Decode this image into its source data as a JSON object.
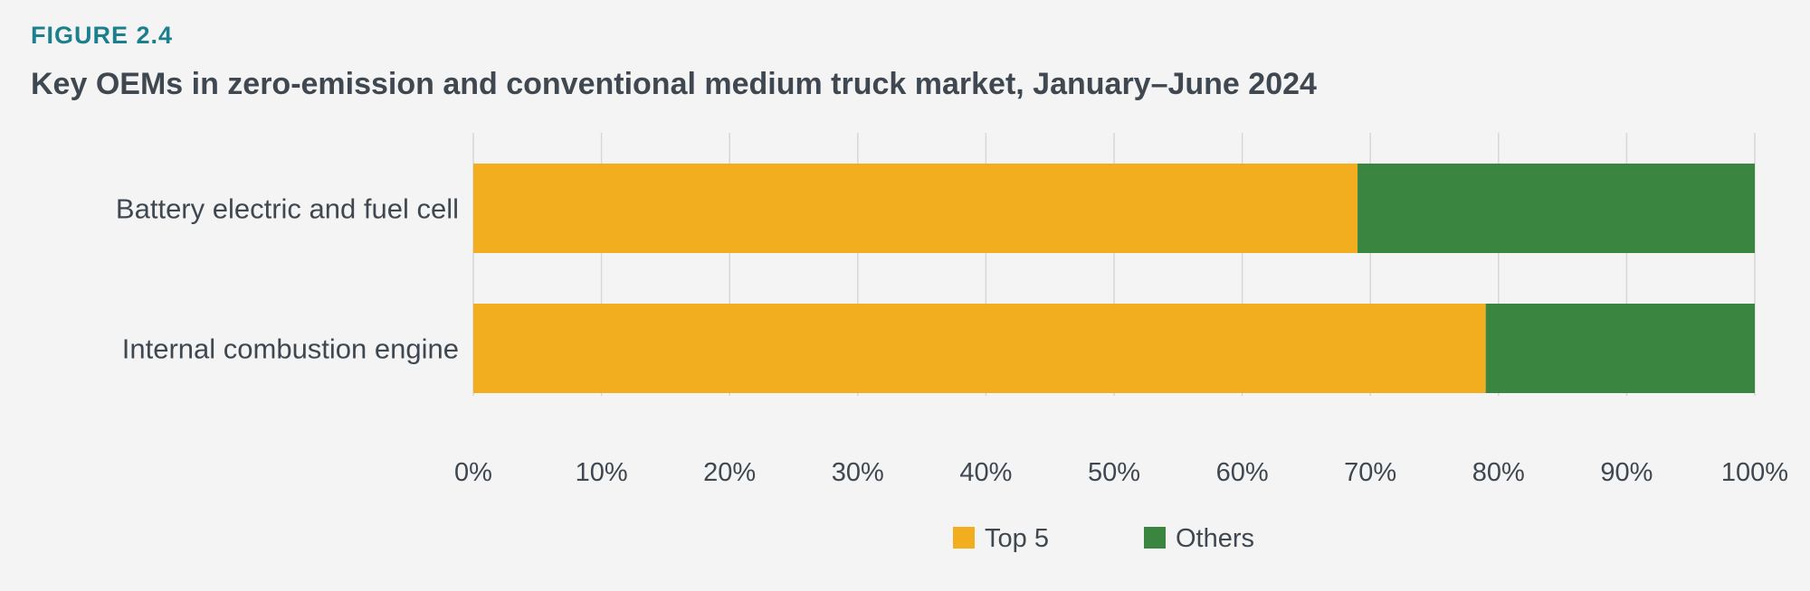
{
  "figure_label": "FIGURE 2.4",
  "title": "Key OEMs in zero-emission and conventional medium truck market, January–June 2024",
  "chart_data": {
    "type": "bar",
    "orientation": "horizontal",
    "stacked": true,
    "title": "Key OEMs in zero-emission and conventional medium truck market, January–June 2024",
    "categories": [
      "Battery electric and fuel cell",
      "Internal combustion engine"
    ],
    "series": [
      {
        "name": "Top 5",
        "color": "#f2ae1f",
        "values": [
          69,
          79
        ]
      },
      {
        "name": "Others",
        "color": "#3a8540",
        "values": [
          31,
          21
        ]
      }
    ],
    "xlim": [
      0,
      100
    ],
    "x_ticks": [
      0,
      10,
      20,
      30,
      40,
      50,
      60,
      70,
      80,
      90,
      100
    ],
    "x_tick_labels": [
      "0%",
      "10%",
      "20%",
      "30%",
      "40%",
      "50%",
      "60%",
      "70%",
      "80%",
      "90%",
      "100%"
    ],
    "grid": "vertical",
    "gridline_color": "#d7d7d7",
    "legend_position": "bottom-center"
  }
}
